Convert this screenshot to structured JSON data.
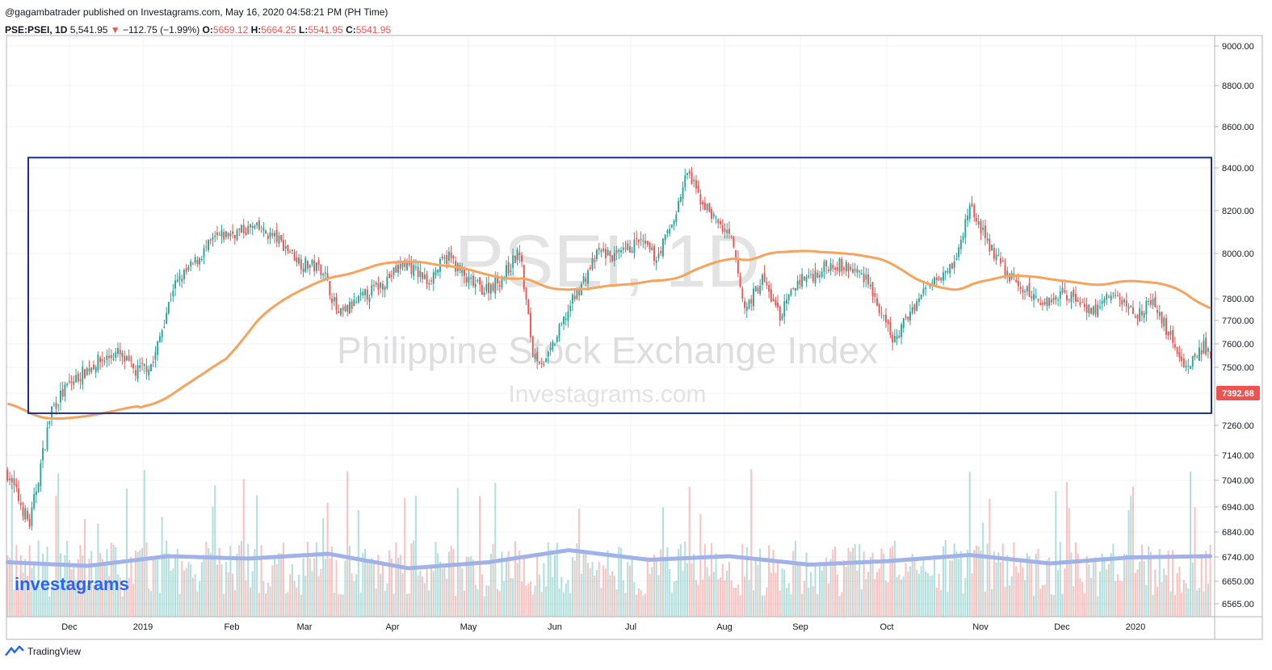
{
  "header": {
    "published": "@gagambatrader published on Investagrams.com, May 16, 2020 04:58:21 PM (PH Time)",
    "symbol": "PSE:PSEI, 1D",
    "last": "5,541.95",
    "change": "−112.75 (−1.99%)",
    "open_label": "O:",
    "open": "5659.12",
    "high_label": "H:",
    "high": "5664.25",
    "low_label": "L:",
    "low": "5541.95",
    "close_label": "C:",
    "close": "5541.95"
  },
  "watermark": {
    "symbol": "PSEI, 1D",
    "name": "Philippine Stock Exchange Index",
    "site": "Investagrams.com"
  },
  "logo_text": "investagrams",
  "footer_text": "TradingView",
  "colors": {
    "up": "#26a69a",
    "down": "#ef5350",
    "ma": "#f7a35c",
    "volume_ma": "#9fb3e8",
    "box": "#1a2f9b",
    "price_tag": "#ef5350"
  },
  "chart_data": {
    "type": "candlestick",
    "x_axis_labels": [
      "Dec",
      "2019",
      "Feb",
      "Mar",
      "Apr",
      "May",
      "Jun",
      "Jul",
      "Aug",
      "Sep",
      "Oct",
      "Nov",
      "Dec",
      "2020"
    ],
    "y_axis_labels": [
      "9000.00",
      "8800.00",
      "8600.00",
      "8400.00",
      "8200.00",
      "8000.00",
      "7800.00",
      "7700.00",
      "7600.00",
      "7500.00",
      "7392.68",
      "7260.00",
      "7140.00",
      "7040.00",
      "6940.00",
      "6840.00",
      "6740.00",
      "6650.00",
      "6565.00"
    ],
    "last_price_tag": "7392.68",
    "trading_range_box": {
      "upper": 8450,
      "lower": 7310,
      "from": "Nov 2018",
      "to": "Jan 2020"
    },
    "close_anchors": [
      [
        0,
        7070
      ],
      [
        10,
        6870
      ],
      [
        20,
        7330
      ],
      [
        28,
        7430
      ],
      [
        40,
        7520
      ],
      [
        50,
        7560
      ],
      [
        58,
        7480
      ],
      [
        66,
        7520
      ],
      [
        75,
        7850
      ],
      [
        84,
        7950
      ],
      [
        94,
        8070
      ],
      [
        100,
        8090
      ],
      [
        112,
        8120
      ],
      [
        122,
        8070
      ],
      [
        133,
        7960
      ],
      [
        143,
        7930
      ],
      [
        150,
        7720
      ],
      [
        160,
        7800
      ],
      [
        170,
        7870
      ],
      [
        180,
        7960
      ],
      [
        190,
        7880
      ],
      [
        200,
        7990
      ],
      [
        208,
        7880
      ],
      [
        216,
        7840
      ],
      [
        224,
        7890
      ],
      [
        232,
        8010
      ],
      [
        238,
        7560
      ],
      [
        244,
        7520
      ],
      [
        256,
        7790
      ],
      [
        268,
        8010
      ],
      [
        276,
        7980
      ],
      [
        286,
        8060
      ],
      [
        294,
        7980
      ],
      [
        302,
        8160
      ],
      [
        308,
        8380
      ],
      [
        314,
        8250
      ],
      [
        320,
        8170
      ],
      [
        328,
        8060
      ],
      [
        334,
        7750
      ],
      [
        342,
        7890
      ],
      [
        350,
        7720
      ],
      [
        358,
        7880
      ],
      [
        366,
        7910
      ],
      [
        374,
        7960
      ],
      [
        382,
        7930
      ],
      [
        390,
        7890
      ],
      [
        396,
        7710
      ],
      [
        402,
        7610
      ],
      [
        410,
        7760
      ],
      [
        420,
        7900
      ],
      [
        430,
        7970
      ],
      [
        436,
        8230
      ],
      [
        444,
        8050
      ],
      [
        452,
        7920
      ],
      [
        460,
        7840
      ],
      [
        470,
        7780
      ],
      [
        478,
        7830
      ],
      [
        486,
        7790
      ],
      [
        492,
        7740
      ],
      [
        500,
        7820
      ],
      [
        506,
        7780
      ],
      [
        512,
        7730
      ],
      [
        518,
        7790
      ],
      [
        526,
        7650
      ],
      [
        534,
        7500
      ],
      [
        542,
        7590
      ],
      [
        545,
        7540
      ]
    ],
    "volume_levels": [
      0.45,
      0.42,
      0.5,
      0.48,
      0.52,
      0.4,
      0.45,
      0.55,
      0.47,
      0.5,
      0.43,
      0.46,
      0.51,
      0.44,
      0.49,
      0.5
    ]
  }
}
